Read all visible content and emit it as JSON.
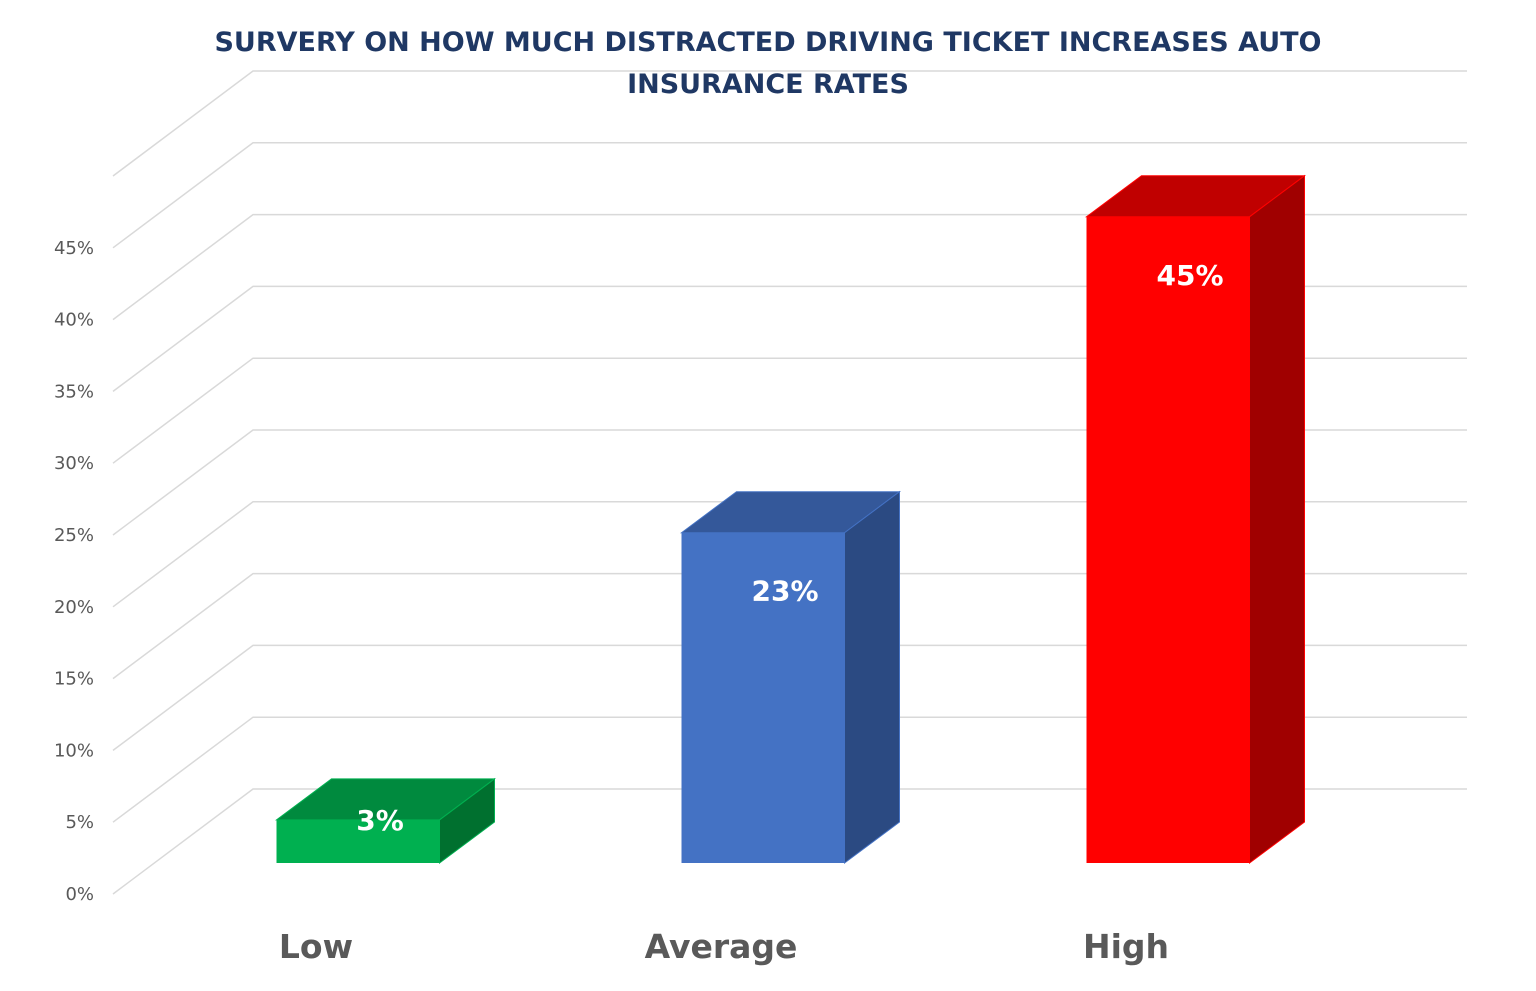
{
  "chart_data": {
    "type": "bar",
    "title_lines": [
      "SURVERY ON HOW MUCH DISTRACTED DRIVING TICKET INCREASES AUTO",
      "INSURANCE RATES"
    ],
    "categories": [
      "Low",
      "Average",
      "High"
    ],
    "values": [
      3,
      23,
      45
    ],
    "data_labels": [
      "3%",
      "23%",
      "45%"
    ],
    "colors": [
      "#00b050",
      "#4472c4",
      "#ff0000"
    ],
    "top_colors": [
      "#008a3e",
      "#34589a",
      "#c00000"
    ],
    "side_colors": [
      "#00702f",
      "#2b4a82",
      "#a00000"
    ],
    "ylim": [
      0,
      45
    ],
    "yticks": [
      "0%",
      "5%",
      "10%",
      "15%",
      "20%",
      "25%",
      "30%",
      "35%",
      "40%",
      "45%"
    ],
    "grid": true,
    "style": "3d-column",
    "xlabel": "",
    "ylabel": ""
  }
}
